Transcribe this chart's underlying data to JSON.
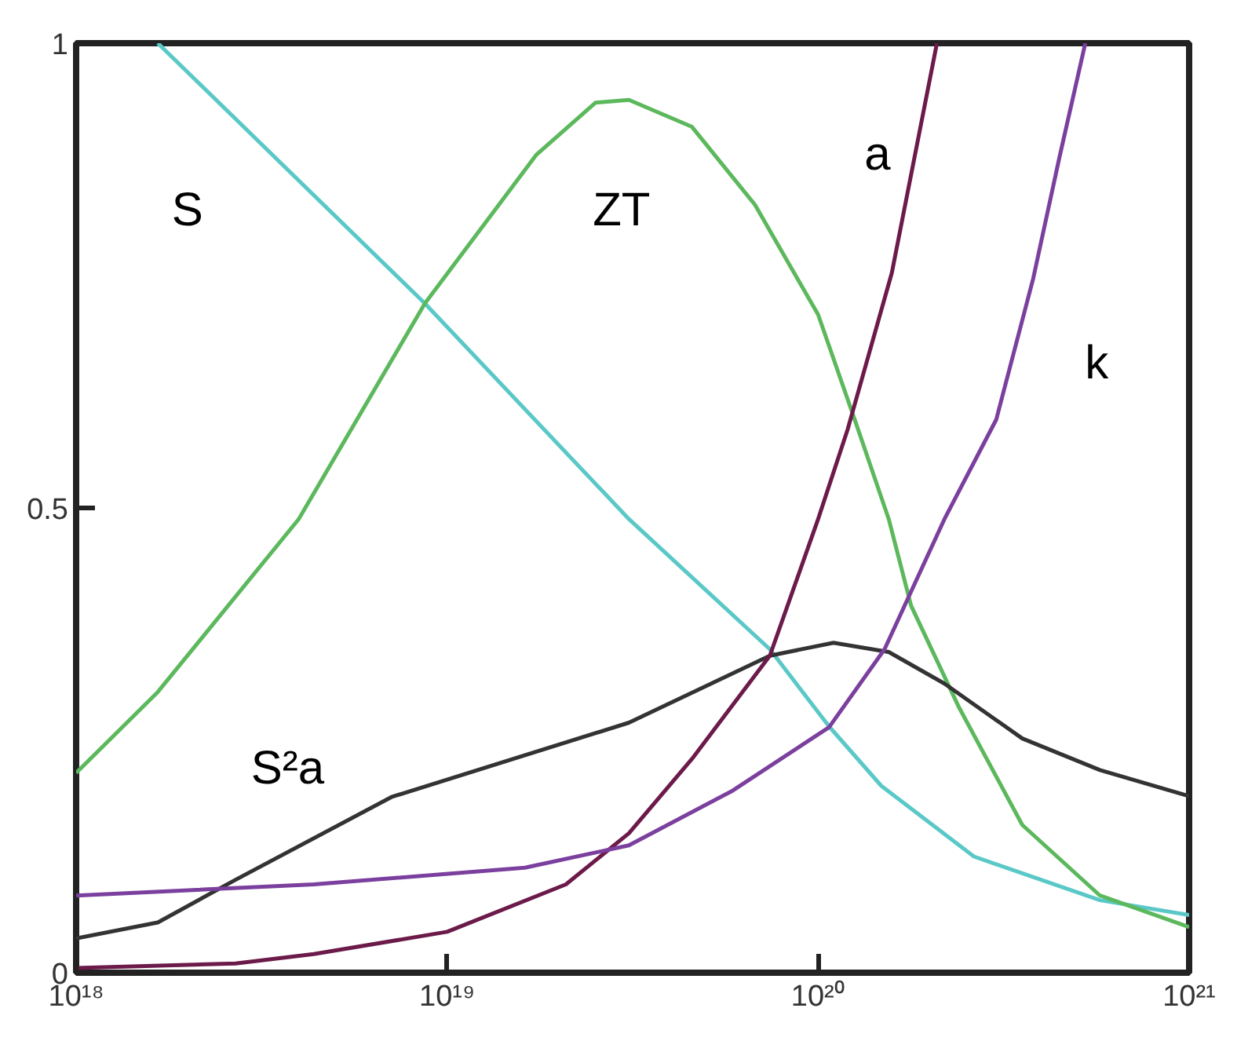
{
  "chart_data": {
    "type": "line",
    "log": "x",
    "xlim": [
      1e+18,
      1e+21
    ],
    "ylim": [
      0,
      1
    ],
    "xticks": [
      {
        "value": 1e+18,
        "label": "10¹⁸"
      },
      {
        "value": 1e+19,
        "label": "10¹⁹"
      },
      {
        "value": 1e+20,
        "label": "10²⁰"
      },
      {
        "value": 1e+21,
        "label": "10²¹"
      }
    ],
    "yticks": [
      0,
      0.5,
      1
    ],
    "grid": false,
    "legend": false,
    "marker": "none",
    "line_style": "solid",
    "series": [
      {
        "name": "S",
        "color": "#5bc8c8",
        "x": [
          1.66e+18,
          8.71e+18,
          3.09e+19,
          7.41e+19,
          1.07e+20,
          1.48e+20,
          2.63e+20,
          5.75e+20,
          1e+21
        ],
        "values": [
          1.0,
          0.72,
          0.488,
          0.348,
          0.265,
          0.201,
          0.125,
          0.078,
          0.062
        ]
      },
      {
        "name": "ZT",
        "color": "#5cb85c",
        "x": [
          1e+18,
          1.66e+18,
          3.98e+18,
          8.71e+18,
          1.74e+19,
          2.51e+19,
          3.09e+19,
          4.57e+19,
          6.76e+19,
          1e+20,
          1.26e+20,
          1.55e+20,
          1.78e+20,
          2.4e+20,
          3.55e+20,
          5.75e+20,
          1e+21
        ],
        "values": [
          0.215,
          0.302,
          0.488,
          0.72,
          0.88,
          0.936,
          0.939,
          0.91,
          0.826,
          0.708,
          0.593,
          0.488,
          0.395,
          0.285,
          0.159,
          0.083,
          0.049
        ]
      },
      {
        "name": "S²a",
        "color": "#333333",
        "x": [
          1e+18,
          1.66e+18,
          2.69e+18,
          7.08e+18,
          3.09e+19,
          7.41e+19,
          1.1e+20,
          1.55e+20,
          2.19e+20,
          3.55e+20,
          5.75e+20,
          1e+21
        ],
        "values": [
          0.037,
          0.054,
          0.1,
          0.189,
          0.269,
          0.341,
          0.355,
          0.345,
          0.311,
          0.252,
          0.218,
          0.19
        ]
      },
      {
        "name": "a",
        "color": "#6b1a4a",
        "x": [
          1e+18,
          2.69e+18,
          4.37e+18,
          1e+19,
          2.09e+19,
          3.09e+19,
          4.57e+19,
          7.41e+19,
          1e+20,
          1.2e+20,
          1.58e+20,
          2.09e+20
        ],
        "values": [
          0.005,
          0.01,
          0.02,
          0.044,
          0.095,
          0.15,
          0.23,
          0.341,
          0.488,
          0.584,
          0.753,
          1.0
        ]
      },
      {
        "name": "k",
        "color": "#7b3f9e",
        "x": [
          1e+18,
          4.37e+18,
          1.62e+19,
          3.09e+19,
          5.89e+19,
          1.07e+20,
          1.51e+20,
          2.19e+20,
          3.02e+20,
          3.8e+20,
          4.47e+20,
          5.25e+20
        ],
        "values": [
          0.083,
          0.095,
          0.113,
          0.137,
          0.196,
          0.264,
          0.348,
          0.488,
          0.595,
          0.747,
          0.877,
          1.0
        ]
      }
    ]
  }
}
